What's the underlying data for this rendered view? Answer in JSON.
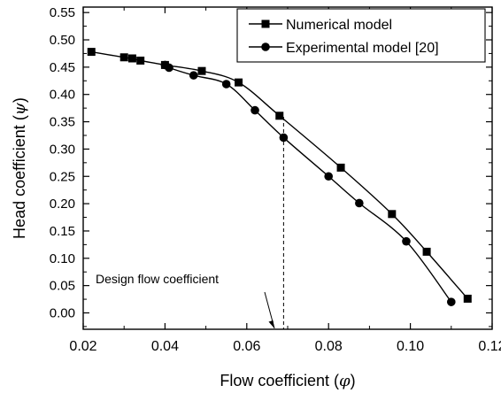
{
  "chart_data": {
    "type": "line",
    "title": "",
    "xlabel": {
      "prefix": "Flow coefficient (",
      "symbol": "φ",
      "suffix": ")"
    },
    "ylabel": {
      "prefix": "Head coefficient (",
      "symbol": "ψ",
      "suffix": ")"
    },
    "xlim": [
      0.02,
      0.12
    ],
    "ylim": [
      -0.03,
      0.56
    ],
    "x_ticks": [
      {
        "value": 0.02,
        "label": "0.02"
      },
      {
        "value": 0.04,
        "label": "0.04"
      },
      {
        "value": 0.06,
        "label": "0.06"
      },
      {
        "value": 0.08,
        "label": "0.08"
      },
      {
        "value": 0.1,
        "label": "0.10"
      },
      {
        "value": 0.12,
        "label": "0.12"
      }
    ],
    "y_ticks": [
      {
        "value": 0.0,
        "label": "0.00"
      },
      {
        "value": 0.05,
        "label": "0.05"
      },
      {
        "value": 0.1,
        "label": "0.10"
      },
      {
        "value": 0.15,
        "label": "0.15"
      },
      {
        "value": 0.2,
        "label": "0.20"
      },
      {
        "value": 0.25,
        "label": "0.25"
      },
      {
        "value": 0.3,
        "label": "0.30"
      },
      {
        "value": 0.35,
        "label": "0.35"
      },
      {
        "value": 0.4,
        "label": "0.40"
      },
      {
        "value": 0.45,
        "label": "0.45"
      },
      {
        "value": 0.5,
        "label": "0.50"
      },
      {
        "value": 0.55,
        "label": "0.55"
      }
    ],
    "x_minor_step": 0.01,
    "y_minor_step": 0.025,
    "grid": false,
    "legend": {
      "position": "top-right"
    },
    "series": [
      {
        "name": "Numerical model",
        "marker": "square",
        "color": "#000000",
        "points": [
          [
            0.022,
            0.478
          ],
          [
            0.03,
            0.468
          ],
          [
            0.032,
            0.466
          ],
          [
            0.034,
            0.462
          ],
          [
            0.04,
            0.454
          ],
          [
            0.049,
            0.443
          ],
          [
            0.058,
            0.422
          ],
          [
            0.068,
            0.361
          ],
          [
            0.083,
            0.266
          ],
          [
            0.0955,
            0.181
          ],
          [
            0.104,
            0.112
          ],
          [
            0.114,
            0.026
          ]
        ]
      },
      {
        "name": "Experimental model [20]",
        "marker": "circle",
        "color": "#000000",
        "points": [
          [
            0.04,
            0.454
          ],
          [
            0.041,
            0.449
          ],
          [
            0.047,
            0.435
          ],
          [
            0.055,
            0.419
          ],
          [
            0.062,
            0.371
          ],
          [
            0.069,
            0.321
          ],
          [
            0.08,
            0.25
          ],
          [
            0.0875,
            0.201
          ],
          [
            0.099,
            0.131
          ],
          [
            0.11,
            0.02
          ]
        ]
      }
    ],
    "annotations": [
      {
        "text": "Design flow coefficient",
        "x": 0.069
      }
    ]
  }
}
